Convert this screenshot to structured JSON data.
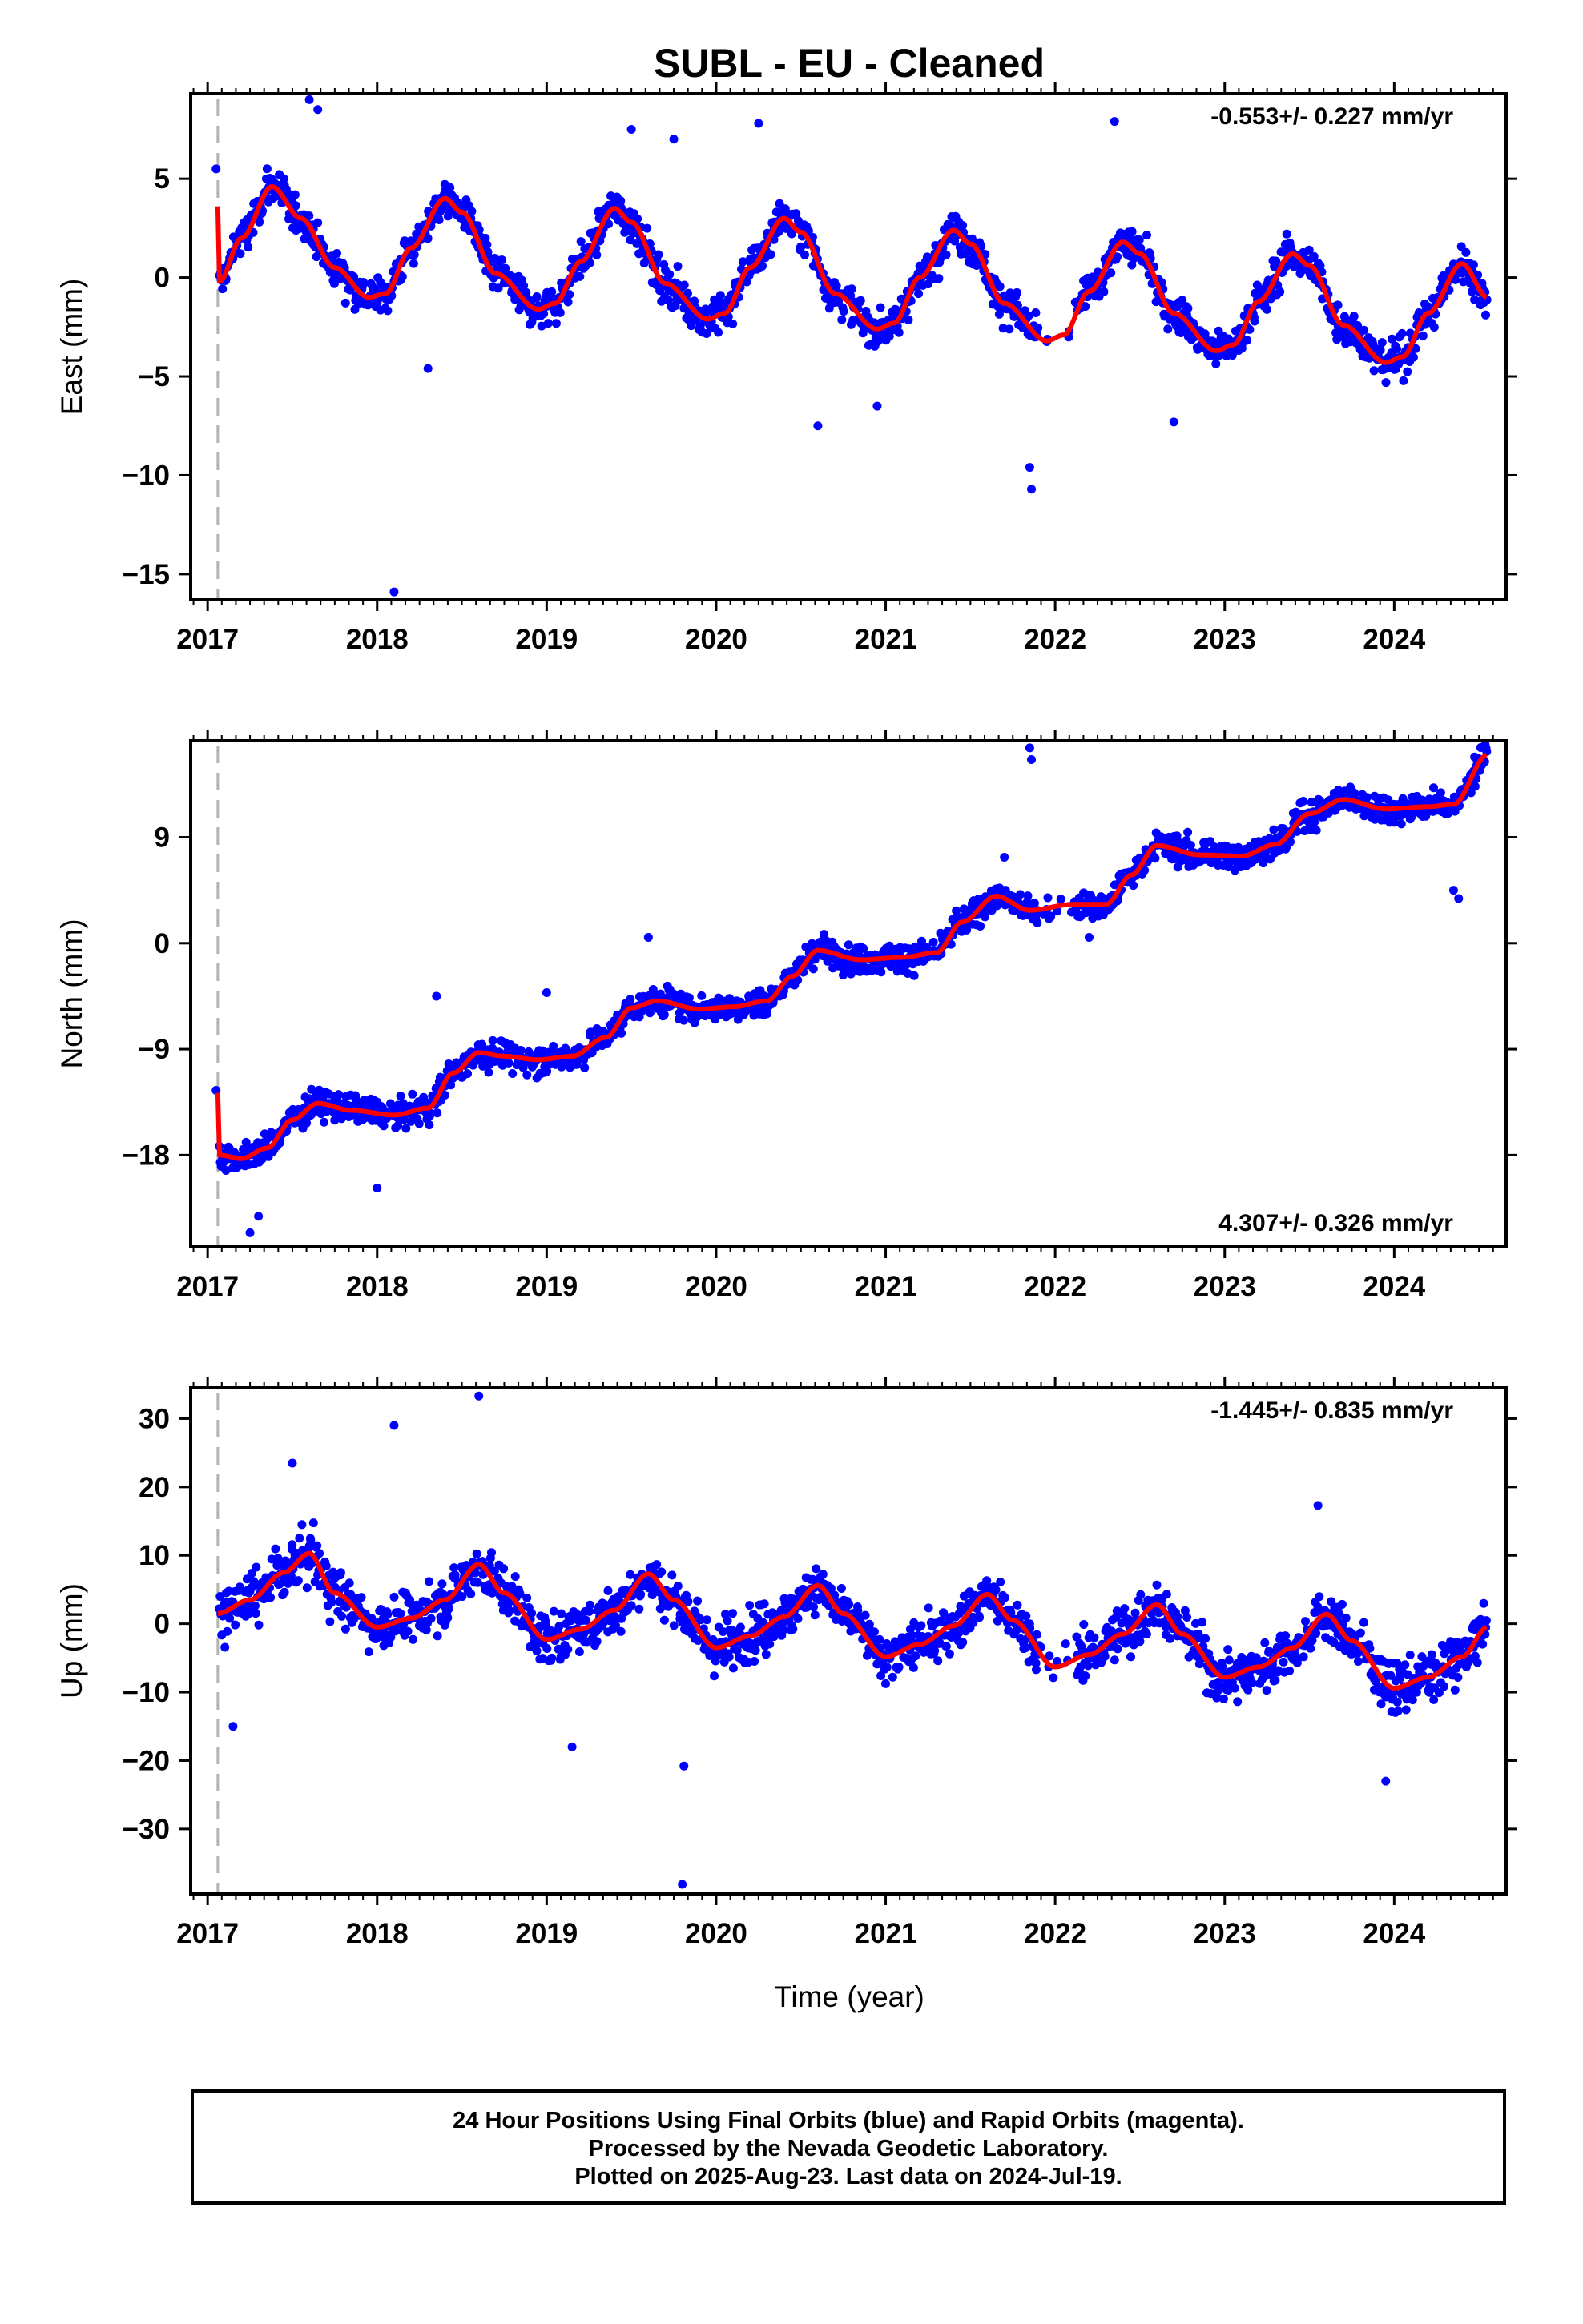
{
  "title": "SUBL  - EU - Cleaned",
  "footer": {
    "line1": "24 Hour Positions Using Final Orbits (blue) and Rapid Orbits (magenta).",
    "line2": "Processed by the Nevada Geodetic Laboratory.",
    "line3": "Plotted on 2025-Aug-23. Last data on 2024-Jul-19."
  },
  "colors": {
    "points": "#0000ff",
    "fit": "#ff0000",
    "dashed_marker": "#b3b3b3"
  },
  "chart_data": [
    {
      "type": "scatter",
      "panel": "east",
      "ylabel": "East (mm)",
      "xlabel": "",
      "rate_label": "-0.553+/- 0.227 mm/yr",
      "rate_position": "top-right",
      "x_ticks": [
        "2017",
        "2018",
        "2019",
        "2020",
        "2021",
        "2022",
        "2023",
        "2024"
      ],
      "y_ticks": [
        5,
        0,
        -5,
        -10,
        -15
      ],
      "y_tick_labels": [
        "5",
        "0",
        "−5",
        "−10",
        "−15"
      ],
      "xlim": [
        2016.9,
        2024.66
      ],
      "ylim": [
        -16.3,
        9.3
      ],
      "grid": false,
      "marker_x": 2017.06,
      "fit_series": {
        "name": "",
        "x": [
          2017.06,
          2017.07,
          2017.2,
          2017.38,
          2017.55,
          2017.75,
          2017.95,
          2018.05,
          2018.2,
          2018.4,
          2018.5,
          2018.7,
          2018.95,
          2019.05,
          2019.2,
          2019.4,
          2019.5,
          2019.7,
          2019.95,
          2020.05,
          2020.2,
          2020.4,
          2020.5,
          2020.7,
          2020.95,
          2021.05,
          2021.2,
          2021.4,
          2021.5,
          2021.7,
          2021.95,
          2022.05,
          2022.2,
          2022.4,
          2022.5,
          2022.7,
          2022.95,
          2023.05,
          2023.2,
          2023.4,
          2023.5,
          2023.7,
          2023.95,
          2024.05,
          2024.2,
          2024.4,
          2024.55
        ],
        "y": [
          3.6,
          -0.2,
          2.0,
          4.6,
          3.0,
          0.5,
          -1.0,
          -0.8,
          1.5,
          4.0,
          3.3,
          0.2,
          -1.6,
          -1.3,
          0.8,
          3.5,
          2.8,
          -0.3,
          -2.1,
          -1.8,
          0.5,
          3.0,
          2.3,
          -0.8,
          -2.6,
          -2.3,
          0.0,
          2.4,
          1.7,
          -1.3,
          -3.2,
          -2.9,
          -0.7,
          1.8,
          1.2,
          -1.8,
          -3.7,
          -3.4,
          -1.2,
          1.2,
          0.6,
          -2.4,
          -4.3,
          -4.0,
          -1.8,
          0.7,
          -1.0
        ]
      },
      "outliers": {
        "x": [
          2017.05,
          2017.6,
          2017.65,
          2018.1,
          2018.3,
          2019.5,
          2019.75,
          2020.25,
          2020.6,
          2020.95,
          2021.85,
          2021.86,
          2022.35,
          2022.7
        ],
        "y": [
          5.5,
          9.0,
          8.5,
          -15.9,
          -4.6,
          7.5,
          7.0,
          7.8,
          -7.5,
          -6.5,
          -9.6,
          -10.7,
          7.9,
          -7.3
        ]
      }
    },
    {
      "type": "scatter",
      "panel": "north",
      "ylabel": "North (mm)",
      "xlabel": "",
      "rate_label": "4.307+/- 0.326 mm/yr",
      "rate_position": "bottom-right",
      "x_ticks": [
        "2017",
        "2018",
        "2019",
        "2020",
        "2021",
        "2022",
        "2023",
        "2024"
      ],
      "y_ticks": [
        9,
        0,
        -9,
        -18
      ],
      "y_tick_labels": [
        "9",
        "0",
        "−9",
        "−18"
      ],
      "xlim": [
        2016.9,
        2024.66
      ],
      "ylim": [
        -25.8,
        17.2
      ],
      "grid": false,
      "marker_x": 2017.06,
      "fit_series": {
        "name": "",
        "x": [
          2017.06,
          2017.07,
          2017.2,
          2017.35,
          2017.5,
          2017.65,
          2017.85,
          2018.1,
          2018.3,
          2018.45,
          2018.6,
          2018.75,
          2018.95,
          2019.15,
          2019.35,
          2019.5,
          2019.65,
          2019.9,
          2020.1,
          2020.3,
          2020.45,
          2020.6,
          2020.85,
          2021.1,
          2021.3,
          2021.45,
          2021.65,
          2021.85,
          2022.1,
          2022.3,
          2022.45,
          2022.6,
          2022.85,
          2023.1,
          2023.3,
          2023.5,
          2023.7,
          2023.95,
          2024.2,
          2024.35,
          2024.55
        ],
        "y": [
          -12.7,
          -18.0,
          -18.3,
          -17.4,
          -15.0,
          -13.6,
          -14.2,
          -14.6,
          -14.0,
          -11.0,
          -9.3,
          -9.6,
          -9.9,
          -9.6,
          -8.0,
          -5.5,
          -4.9,
          -5.6,
          -5.4,
          -4.9,
          -2.8,
          -0.6,
          -1.4,
          -1.2,
          -0.8,
          1.8,
          4.0,
          2.8,
          3.3,
          3.3,
          5.8,
          8.3,
          7.5,
          7.4,
          8.4,
          11.0,
          12.2,
          11.4,
          11.6,
          11.8,
          16.0
        ]
      },
      "outliers": {
        "x": [
          2017.05,
          2017.25,
          2017.3,
          2018.0,
          2018.35,
          2019.0,
          2019.6,
          2020.3,
          2021.7,
          2021.85,
          2021.86,
          2022.2,
          2024.35,
          2024.38
        ],
        "y": [
          -12.5,
          -24.6,
          -23.2,
          -20.8,
          -4.5,
          -4.2,
          0.5,
          -6.0,
          7.3,
          16.6,
          15.6,
          0.5,
          4.5,
          3.8
        ]
      }
    },
    {
      "type": "scatter",
      "panel": "up",
      "ylabel": "Up (mm)",
      "xlabel": "Time (year)",
      "rate_label": "-1.445+/- 0.835 mm/yr",
      "rate_position": "top-right",
      "x_ticks": [
        "2017",
        "2018",
        "2019",
        "2020",
        "2021",
        "2022",
        "2023",
        "2024"
      ],
      "y_ticks": [
        30,
        20,
        10,
        0,
        -10,
        -20,
        -30
      ],
      "y_tick_labels": [
        "30",
        "20",
        "10",
        "0",
        "−10",
        "−20",
        "−30"
      ],
      "xlim": [
        2016.9,
        2024.66
      ],
      "ylim": [
        -39.5,
        34.5
      ],
      "grid": false,
      "marker_x": 2017.06,
      "fit_series": {
        "name": "",
        "x": [
          2017.06,
          2017.25,
          2017.45,
          2017.6,
          2017.75,
          2018.0,
          2018.2,
          2018.4,
          2018.6,
          2018.75,
          2019.0,
          2019.2,
          2019.4,
          2019.6,
          2019.75,
          2020.0,
          2020.2,
          2020.4,
          2020.6,
          2020.75,
          2021.0,
          2021.2,
          2021.4,
          2021.6,
          2021.75,
          2022.0,
          2022.2,
          2022.4,
          2022.6,
          2022.75,
          2023.0,
          2023.2,
          2023.4,
          2023.6,
          2023.75,
          2024.0,
          2024.2,
          2024.4,
          2024.55
        ],
        "y": [
          1.5,
          3.5,
          7.5,
          10.3,
          4.5,
          -0.5,
          0.8,
          3.5,
          8.7,
          4.5,
          -2.3,
          -0.8,
          2.0,
          7.3,
          3.5,
          -3.5,
          -1.8,
          1.0,
          5.6,
          1.5,
          -4.8,
          -3.0,
          -0.3,
          4.3,
          0.5,
          -6.3,
          -4.5,
          -1.5,
          2.8,
          -1.5,
          -7.8,
          -6.3,
          -3.5,
          1.4,
          -2.5,
          -9.4,
          -7.8,
          -4.8,
          -0.5
        ]
      },
      "outliers": {
        "x": [
          2017.5,
          2018.1,
          2018.6,
          2019.15,
          2019.8,
          2019.81,
          2017.15,
          2023.95,
          2023.55
        ],
        "y": [
          23.5,
          29.0,
          33.3,
          -18.0,
          -38.1,
          -20.8,
          -15.0,
          -23.0,
          17.3
        ]
      }
    }
  ]
}
